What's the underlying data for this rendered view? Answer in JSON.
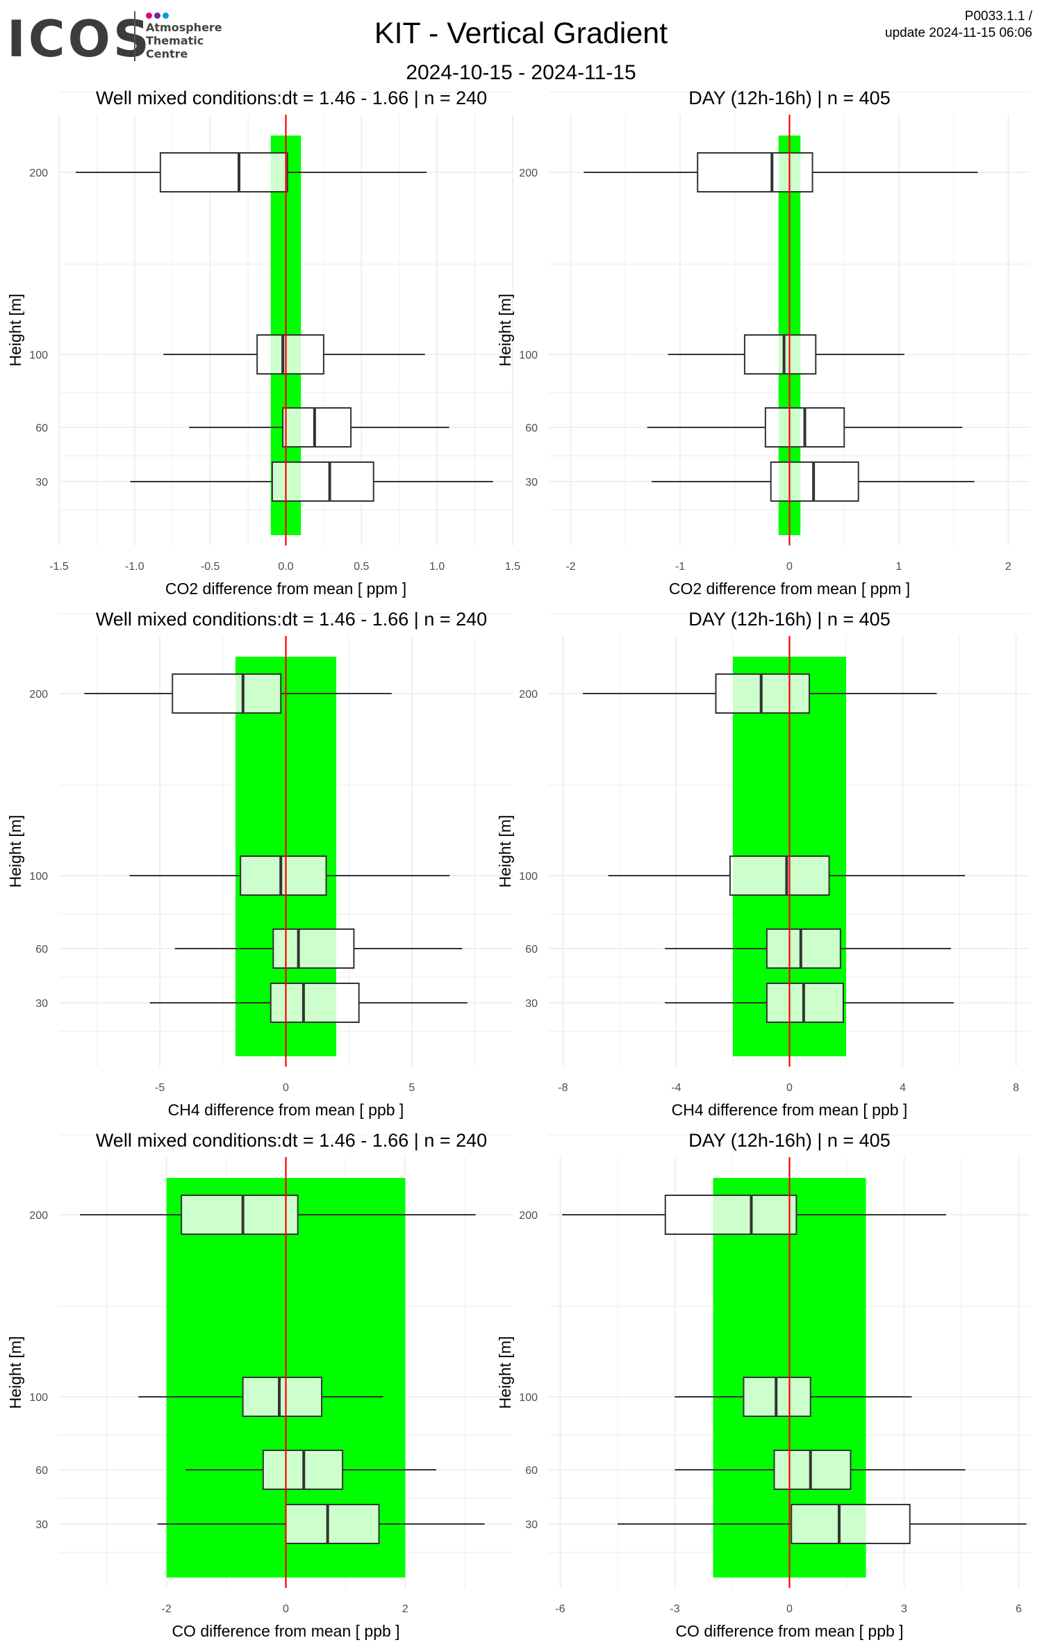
{
  "header": {
    "logo_text": "ICOS",
    "logo_subtitle": [
      "Atmosphere",
      "Thematic",
      "Centre"
    ],
    "title": "KIT - Vertical Gradient",
    "date_range": "2024-10-15 - 2024-11-15",
    "code": "P0033.1.1 /",
    "update": "update  2024-11-15 06:06"
  },
  "colors": {
    "band": "#00ff00",
    "zero_line": "#ff0000",
    "box_fill_inside_band": "#ccffcc",
    "box_fill": "#ffffff",
    "grid": "#ebebeb",
    "logo_dots": [
      "#e6007e",
      "#6f2c91",
      "#009fe3"
    ]
  },
  "chart_data": [
    {
      "type": "boxplot",
      "title": "Well mixed conditions:dt = 1.46 - 1.66 | n = 240",
      "xlabel": "CO2  difference from mean [ ppm ]",
      "ylabel": "Height [m]",
      "xlim": [
        -1.5,
        1.5
      ],
      "xticks": [
        -1.5,
        -1.0,
        -0.5,
        0.0,
        0.5,
        1.0,
        1.5
      ],
      "xtick_labels": [
        "-1.5",
        "-1.0",
        "-0.5",
        "0.0",
        "0.5",
        "1.0",
        "1.5"
      ],
      "yticks": [
        30,
        60,
        100,
        200
      ],
      "band": [
        -0.1,
        0.1
      ],
      "grid": true,
      "boxes": [
        {
          "height": 200,
          "whisker_low": -1.39,
          "q1": -0.83,
          "median": -0.31,
          "q3": 0.01,
          "whisker_high": 0.93
        },
        {
          "height": 100,
          "whisker_low": -0.81,
          "q1": -0.19,
          "median": -0.02,
          "q3": 0.25,
          "whisker_high": 0.92
        },
        {
          "height": 60,
          "whisker_low": -0.64,
          "q1": -0.02,
          "median": 0.19,
          "q3": 0.43,
          "whisker_high": 1.08
        },
        {
          "height": 30,
          "whisker_low": -1.03,
          "q1": -0.09,
          "median": 0.29,
          "q3": 0.58,
          "whisker_high": 1.37
        }
      ]
    },
    {
      "type": "boxplot",
      "title": "DAY (12h-16h) | n = 405",
      "xlabel": "CO2  difference from mean [ ppm ]",
      "ylabel": "Height [m]",
      "xlim": [
        -2.2,
        2.2
      ],
      "xticks": [
        -2,
        -1,
        0,
        1,
        2
      ],
      "xtick_labels": [
        "-2",
        "-1",
        "0",
        "1",
        "2"
      ],
      "yticks": [
        30,
        60,
        100,
        200
      ],
      "band": [
        -0.1,
        0.1
      ],
      "grid": true,
      "boxes": [
        {
          "height": 200,
          "whisker_low": -1.88,
          "q1": -0.84,
          "median": -0.16,
          "q3": 0.21,
          "whisker_high": 1.72
        },
        {
          "height": 100,
          "whisker_low": -1.11,
          "q1": -0.41,
          "median": -0.05,
          "q3": 0.24,
          "whisker_high": 1.05
        },
        {
          "height": 60,
          "whisker_low": -1.3,
          "q1": -0.22,
          "median": 0.14,
          "q3": 0.5,
          "whisker_high": 1.58
        },
        {
          "height": 30,
          "whisker_low": -1.26,
          "q1": -0.17,
          "median": 0.22,
          "q3": 0.63,
          "whisker_high": 1.69
        }
      ]
    },
    {
      "type": "boxplot",
      "title": "Well mixed conditions:dt = 1.46 - 1.66 | n = 240",
      "xlabel": "CH4  difference from mean [ ppb ]",
      "ylabel": "Height [m]",
      "xlim": [
        -9,
        9
      ],
      "xticks": [
        -5,
        0,
        5
      ],
      "xtick_labels": [
        "-5",
        "0",
        "5"
      ],
      "yticks": [
        30,
        60,
        100,
        200
      ],
      "band": [
        -2,
        2
      ],
      "grid": true,
      "boxes": [
        {
          "height": 200,
          "whisker_low": -8.0,
          "q1": -4.5,
          "median": -1.7,
          "q3": -0.2,
          "whisker_high": 4.2
        },
        {
          "height": 100,
          "whisker_low": -6.2,
          "q1": -1.8,
          "median": -0.2,
          "q3": 1.6,
          "whisker_high": 6.5
        },
        {
          "height": 60,
          "whisker_low": -4.4,
          "q1": -0.5,
          "median": 0.5,
          "q3": 2.7,
          "whisker_high": 7.0
        },
        {
          "height": 30,
          "whisker_low": -5.4,
          "q1": -0.6,
          "median": 0.7,
          "q3": 2.9,
          "whisker_high": 7.2
        }
      ]
    },
    {
      "type": "boxplot",
      "title": "DAY (12h-16h) | n = 405",
      "xlabel": "CH4  difference from mean [ ppb ]",
      "ylabel": "Height [m]",
      "xlim": [
        -8.5,
        8.5
      ],
      "xticks": [
        -8,
        -4,
        0,
        4,
        8
      ],
      "xtick_labels": [
        "-8",
        "-4",
        "0",
        "4",
        "8"
      ],
      "yticks": [
        30,
        60,
        100,
        200
      ],
      "band": [
        -2,
        2
      ],
      "grid": true,
      "boxes": [
        {
          "height": 200,
          "whisker_low": -7.3,
          "q1": -2.6,
          "median": -1.0,
          "q3": 0.7,
          "whisker_high": 5.2
        },
        {
          "height": 100,
          "whisker_low": -6.4,
          "q1": -2.1,
          "median": -0.1,
          "q3": 1.4,
          "whisker_high": 6.2
        },
        {
          "height": 60,
          "whisker_low": -4.4,
          "q1": -0.8,
          "median": 0.4,
          "q3": 1.8,
          "whisker_high": 5.7
        },
        {
          "height": 30,
          "whisker_low": -4.4,
          "q1": -0.8,
          "median": 0.5,
          "q3": 1.9,
          "whisker_high": 5.8
        }
      ]
    },
    {
      "type": "boxplot",
      "title": "Well mixed conditions:dt = 1.46 - 1.66 | n = 240",
      "xlabel": "CO  difference from mean [ ppb ]",
      "ylabel": "Height [m]",
      "xlim": [
        -3.8,
        3.8
      ],
      "xticks": [
        -2,
        0,
        2
      ],
      "xtick_labels": [
        "-2",
        "0",
        "2"
      ],
      "yticks": [
        30,
        60,
        100,
        200
      ],
      "band": [
        -2,
        2
      ],
      "grid": true,
      "boxes": [
        {
          "height": 200,
          "whisker_low": -3.45,
          "q1": -1.75,
          "median": -0.72,
          "q3": 0.2,
          "whisker_high": 3.18
        },
        {
          "height": 100,
          "whisker_low": -2.47,
          "q1": -0.72,
          "median": -0.11,
          "q3": 0.6,
          "whisker_high": 1.63
        },
        {
          "height": 60,
          "whisker_low": -1.68,
          "q1": -0.38,
          "median": 0.3,
          "q3": 0.95,
          "whisker_high": 2.52
        },
        {
          "height": 30,
          "whisker_low": -2.15,
          "q1": 0.0,
          "median": 0.7,
          "q3": 1.56,
          "whisker_high": 3.33
        }
      ]
    },
    {
      "type": "boxplot",
      "title": "DAY (12h-16h) | n = 405",
      "xlabel": "CO  difference from mean [ ppb ]",
      "ylabel": "Height [m]",
      "xlim": [
        -6.3,
        6.3
      ],
      "xticks": [
        -6,
        -3,
        0,
        3,
        6
      ],
      "xtick_labels": [
        "-6",
        "-3",
        "0",
        "3",
        "6"
      ],
      "yticks": [
        30,
        60,
        100,
        200
      ],
      "band": [
        -2,
        2
      ],
      "grid": true,
      "boxes": [
        {
          "height": 200,
          "whisker_low": -5.95,
          "q1": -3.25,
          "median": -1.0,
          "q3": 0.18,
          "whisker_high": 4.1
        },
        {
          "height": 100,
          "whisker_low": -3.0,
          "q1": -1.2,
          "median": -0.35,
          "q3": 0.55,
          "whisker_high": 3.2
        },
        {
          "height": 60,
          "whisker_low": -3.0,
          "q1": -0.4,
          "median": 0.55,
          "q3": 1.6,
          "whisker_high": 4.6
        },
        {
          "height": 30,
          "whisker_low": -4.5,
          "q1": 0.05,
          "median": 1.3,
          "q3": 3.15,
          "whisker_high": 6.2
        }
      ]
    }
  ]
}
